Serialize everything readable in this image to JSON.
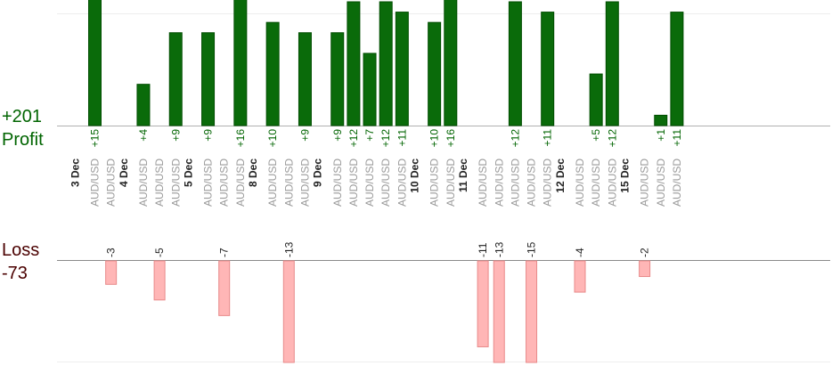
{
  "summary": {
    "profit_total": "+201",
    "profit_label": "Profit",
    "loss_label": "Loss",
    "loss_total": "-73"
  },
  "colors": {
    "profit_bar": "#0a6b0a",
    "profit_bar_edge": "#004d00",
    "profit_text": "#006400",
    "loss_bar": "#ffb6b6",
    "loss_bar_edge": "#e88a8a",
    "loss_text": "#222222",
    "date_text": "#222222",
    "pair_text": "#9a9a9a"
  },
  "chart_data": {
    "type": "bar",
    "title": "",
    "xlabel": "",
    "ylabel": "",
    "date_groups": [
      "3 Dec",
      "4 Dec",
      "5 Dec",
      "8 Dec",
      "9 Dec",
      "10 Dec",
      "11 Dec",
      "12 Dec",
      "15 Dec"
    ],
    "trades": [
      {
        "date": "3 Dec",
        "pair": "AUD/USD",
        "value": 15
      },
      {
        "date": "3 Dec",
        "pair": "AUD/USD",
        "value": -3
      },
      {
        "date": "4 Dec",
        "pair": "AUD/USD",
        "value": 4
      },
      {
        "date": "4 Dec",
        "pair": "AUD/USD",
        "value": -5
      },
      {
        "date": "4 Dec",
        "pair": "AUD/USD",
        "value": 9
      },
      {
        "date": "5 Dec",
        "pair": "AUD/USD",
        "value": 9
      },
      {
        "date": "5 Dec",
        "pair": "AUD/USD",
        "value": -7
      },
      {
        "date": "5 Dec",
        "pair": "AUD/USD",
        "value": 16
      },
      {
        "date": "8 Dec",
        "pair": "AUD/USD",
        "value": 10
      },
      {
        "date": "8 Dec",
        "pair": "AUD/USD",
        "value": -13
      },
      {
        "date": "8 Dec",
        "pair": "AUD/USD",
        "value": 9
      },
      {
        "date": "9 Dec",
        "pair": "AUD/USD",
        "value": 9
      },
      {
        "date": "9 Dec",
        "pair": "AUD/USD",
        "value": 12
      },
      {
        "date": "9 Dec",
        "pair": "AUD/USD",
        "value": 7
      },
      {
        "date": "9 Dec",
        "pair": "AUD/USD",
        "value": 12
      },
      {
        "date": "9 Dec",
        "pair": "AUD/USD",
        "value": 11
      },
      {
        "date": "10 Dec",
        "pair": "AUD/USD",
        "value": 10
      },
      {
        "date": "10 Dec",
        "pair": "AUD/USD",
        "value": 16
      },
      {
        "date": "11 Dec",
        "pair": "AUD/USD",
        "value": -11
      },
      {
        "date": "11 Dec",
        "pair": "AUD/USD",
        "value": -13
      },
      {
        "date": "11 Dec",
        "pair": "AUD/USD",
        "value": 12
      },
      {
        "date": "11 Dec",
        "pair": "AUD/USD",
        "value": -15
      },
      {
        "date": "11 Dec",
        "pair": "AUD/USD",
        "value": 11
      },
      {
        "date": "12 Dec",
        "pair": "AUD/USD",
        "value": -4
      },
      {
        "date": "12 Dec",
        "pair": "AUD/USD",
        "value": 5
      },
      {
        "date": "12 Dec",
        "pair": "AUD/USD",
        "value": 12
      },
      {
        "date": "15 Dec",
        "pair": "AUD/USD",
        "value": -2
      },
      {
        "date": "15 Dec",
        "pair": "AUD/USD",
        "value": 1
      },
      {
        "date": "15 Dec",
        "pair": "AUD/USD",
        "value": 11
      }
    ],
    "profit_ylim": [
      0,
      12
    ],
    "loss_ylim": [
      -13,
      0
    ],
    "grid": true,
    "legend": "none"
  }
}
